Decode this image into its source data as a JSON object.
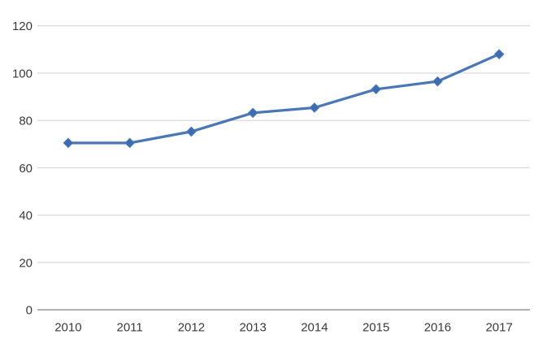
{
  "chart_data": {
    "type": "line",
    "title": "",
    "xlabel": "",
    "ylabel": "",
    "categories": [
      "2010",
      "2011",
      "2012",
      "2013",
      "2014",
      "2015",
      "2016",
      "2017"
    ],
    "series": [
      {
        "values": [
          70.5,
          70.5,
          75.3,
          83.2,
          85.4,
          93.2,
          96.5,
          108
        ]
      }
    ],
    "ylim": [
      0,
      120
    ],
    "ytick_step": 20,
    "ytick_labels": [
      "0",
      "20",
      "40",
      "60",
      "80",
      "100",
      "120"
    ],
    "grid": true,
    "legend_position": "none",
    "marker": "diamond",
    "colors": {
      "line": "#4a77b5",
      "marker_fill": "#3d6db0",
      "gridline": "#d6d6d6",
      "axis_line": "#9e9e9e",
      "tick_text": "#3a3a3a",
      "background": "#ffffff"
    }
  }
}
